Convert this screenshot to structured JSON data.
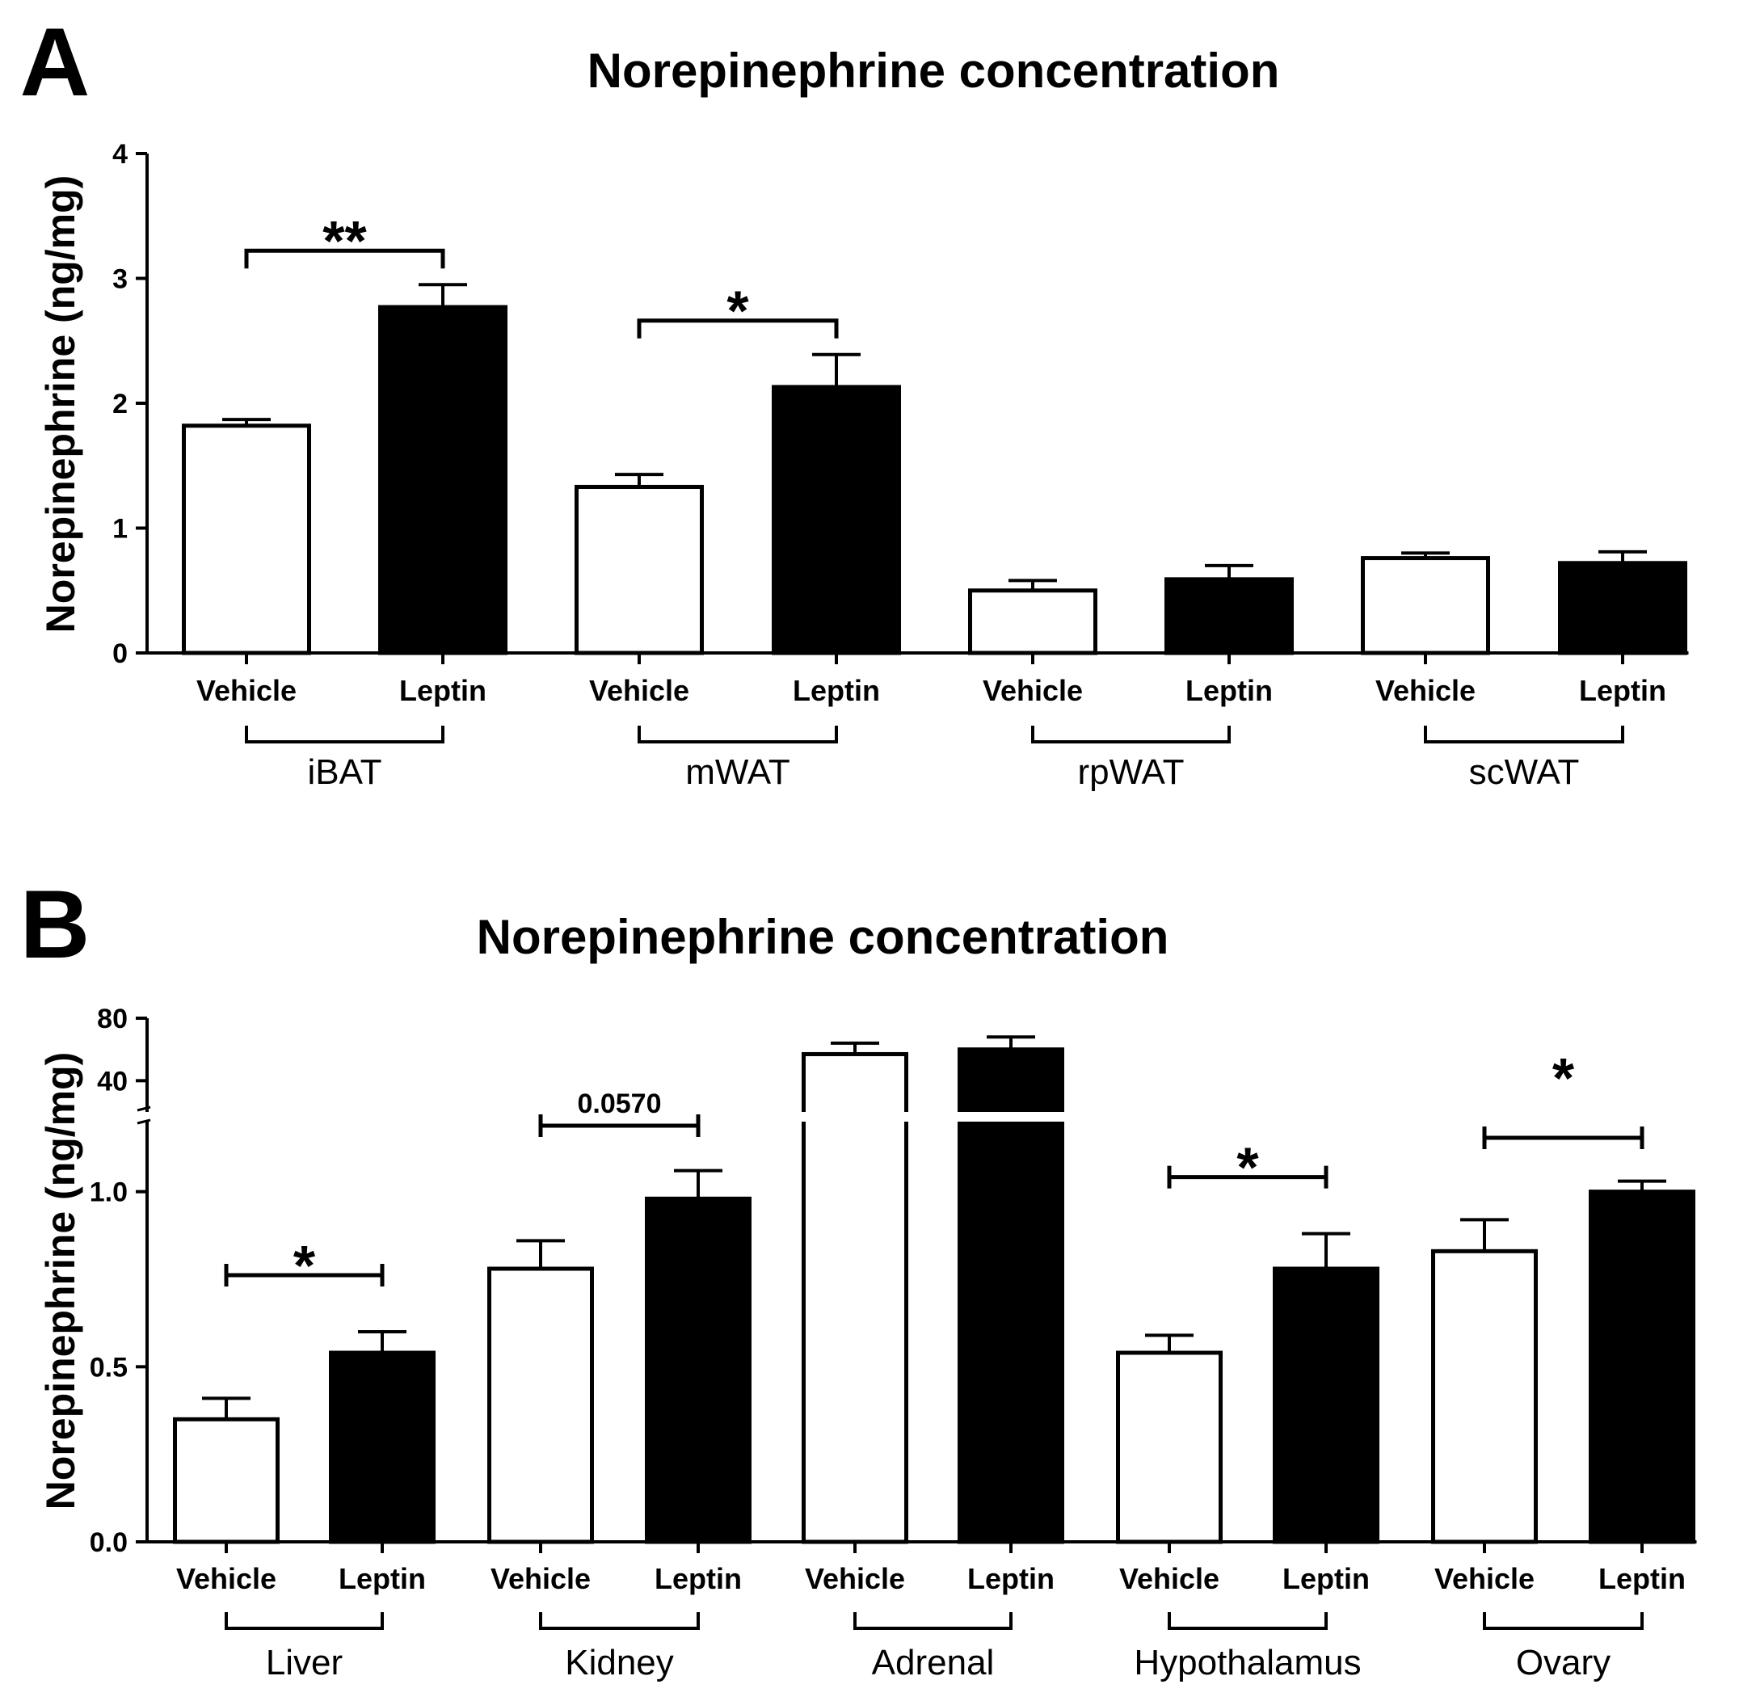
{
  "figure": {
    "panels": [
      {
        "panel_label": "A",
        "chart_data": {
          "type": "bar",
          "title": "Norepinephrine concentration",
          "ylabel": "Norepinephrine (ng/mg)",
          "xlabel": "",
          "ylim": [
            0,
            4
          ],
          "yticks": [
            "0",
            "1",
            "2",
            "3",
            "4"
          ],
          "axis_break": false,
          "series_colors": {
            "Vehicle": "#ffffff",
            "Leptin": "#000000"
          },
          "groups": [
            {
              "name": "iBAT",
              "bars": [
                {
                  "label": "Vehicle",
                  "value": 1.82,
                  "error": 0.05
                },
                {
                  "label": "Leptin",
                  "value": 2.77,
                  "error": 0.18
                }
              ],
              "significance": "**"
            },
            {
              "name": "mWAT",
              "bars": [
                {
                  "label": "Vehicle",
                  "value": 1.33,
                  "error": 0.1
                },
                {
                  "label": "Leptin",
                  "value": 2.13,
                  "error": 0.26
                }
              ],
              "significance": "*"
            },
            {
              "name": "rpWAT",
              "bars": [
                {
                  "label": "Vehicle",
                  "value": 0.5,
                  "error": 0.08
                },
                {
                  "label": "Leptin",
                  "value": 0.59,
                  "error": 0.11
                }
              ],
              "significance": ""
            },
            {
              "name": "scWAT",
              "bars": [
                {
                  "label": "Vehicle",
                  "value": 0.76,
                  "error": 0.04
                },
                {
                  "label": "Leptin",
                  "value": 0.72,
                  "error": 0.09
                }
              ],
              "significance": ""
            }
          ]
        }
      },
      {
        "panel_label": "B",
        "chart_data": {
          "type": "bar",
          "title": "Norepinephrine concentration",
          "ylabel": "Norepinephrine (ng/mg)",
          "xlabel": "",
          "ylim_lower": [
            0,
            1.2
          ],
          "ylim_upper": [
            20,
            80
          ],
          "yticks_lower": [
            "0.0",
            "0.5",
            "1.0"
          ],
          "yticks_upper": [
            "40",
            "80"
          ],
          "axis_break": true,
          "series_colors": {
            "Vehicle": "#ffffff",
            "Leptin": "#000000"
          },
          "groups": [
            {
              "name": "Liver",
              "bars": [
                {
                  "label": "Vehicle",
                  "value": 0.35,
                  "error": 0.06
                },
                {
                  "label": "Leptin",
                  "value": 0.54,
                  "error": 0.06
                }
              ],
              "significance": "*"
            },
            {
              "name": "Kidney",
              "bars": [
                {
                  "label": "Vehicle",
                  "value": 0.78,
                  "error": 0.08
                },
                {
                  "label": "Leptin",
                  "value": 0.98,
                  "error": 0.08
                }
              ],
              "significance": "0.0570"
            },
            {
              "name": "Adrenal",
              "bars": [
                {
                  "label": "Vehicle",
                  "value": 57,
                  "error": 7
                },
                {
                  "label": "Leptin",
                  "value": 60,
                  "error": 8
                }
              ],
              "significance": ""
            },
            {
              "name": "Hypothalamus",
              "bars": [
                {
                  "label": "Vehicle",
                  "value": 0.54,
                  "error": 0.05
                },
                {
                  "label": "Leptin",
                  "value": 0.78,
                  "error": 0.1
                }
              ],
              "significance": "*"
            },
            {
              "name": "Ovary",
              "bars": [
                {
                  "label": "Vehicle",
                  "value": 0.83,
                  "error": 0.09
                },
                {
                  "label": "Leptin",
                  "value": 1.0,
                  "error": 0.03
                }
              ],
              "significance": "*"
            }
          ]
        }
      }
    ]
  }
}
